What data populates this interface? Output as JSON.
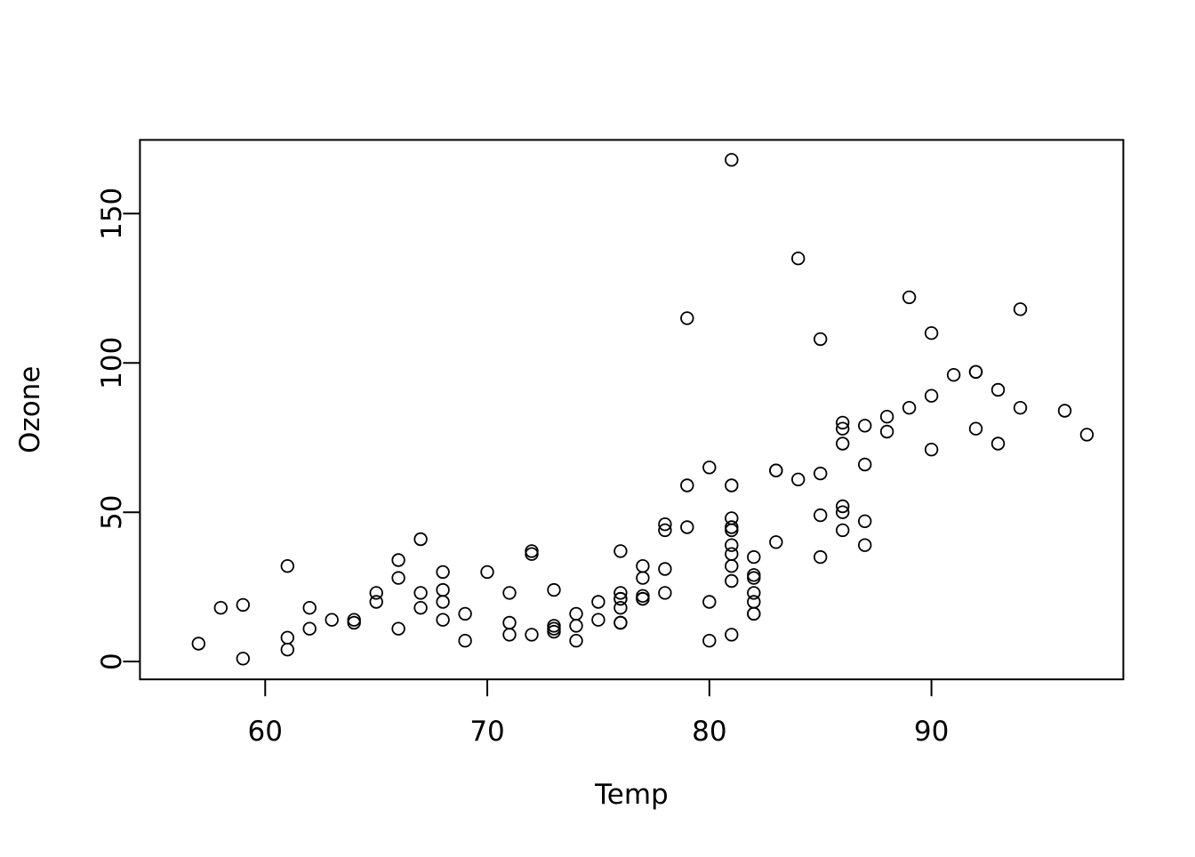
{
  "chart_data": {
    "type": "scatter",
    "title": "",
    "xlabel": "Temp",
    "ylabel": "Ozone",
    "x_ticks": [
      60,
      70,
      80,
      90
    ],
    "y_ticks": [
      0,
      50,
      100,
      150
    ],
    "xlim": [
      54.36,
      98.64
    ],
    "ylim": [
      -5.96,
      174.68
    ],
    "grid": false,
    "legend": "none",
    "marker": "open-circle",
    "marker_color": "#000000",
    "background": "#ffffff",
    "points": [
      [
        67,
        41
      ],
      [
        72,
        36
      ],
      [
        74,
        12
      ],
      [
        62,
        18
      ],
      [
        66,
        28
      ],
      [
        65,
        23
      ],
      [
        59,
        19
      ],
      [
        61,
        8
      ],
      [
        74,
        7
      ],
      [
        69,
        16
      ],
      [
        66,
        11
      ],
      [
        68,
        14
      ],
      [
        58,
        18
      ],
      [
        64,
        14
      ],
      [
        66,
        34
      ],
      [
        57,
        6
      ],
      [
        68,
        30
      ],
      [
        62,
        11
      ],
      [
        59,
        1
      ],
      [
        73,
        11
      ],
      [
        61,
        4
      ],
      [
        61,
        32
      ],
      [
        67,
        23
      ],
      [
        81,
        45
      ],
      [
        79,
        115
      ],
      [
        76,
        37
      ],
      [
        82,
        29
      ],
      [
        90,
        71
      ],
      [
        87,
        39
      ],
      [
        82,
        23
      ],
      [
        77,
        21
      ],
      [
        72,
        37
      ],
      [
        65,
        20
      ],
      [
        73,
        12
      ],
      [
        76,
        13
      ],
      [
        84,
        135
      ],
      [
        85,
        49
      ],
      [
        81,
        32
      ],
      [
        83,
        64
      ],
      [
        83,
        40
      ],
      [
        88,
        77
      ],
      [
        92,
        97
      ],
      [
        92,
        97
      ],
      [
        89,
        85
      ],
      [
        73,
        10
      ],
      [
        81,
        27
      ],
      [
        80,
        7
      ],
      [
        81,
        48
      ],
      [
        82,
        35
      ],
      [
        84,
        61
      ],
      [
        87,
        79
      ],
      [
        85,
        63
      ],
      [
        74,
        16
      ],
      [
        86,
        80
      ],
      [
        85,
        108
      ],
      [
        82,
        20
      ],
      [
        86,
        52
      ],
      [
        88,
        82
      ],
      [
        86,
        50
      ],
      [
        83,
        64
      ],
      [
        81,
        59
      ],
      [
        81,
        39
      ],
      [
        81,
        9
      ],
      [
        82,
        16
      ],
      [
        86,
        78
      ],
      [
        85,
        35
      ],
      [
        87,
        66
      ],
      [
        89,
        122
      ],
      [
        90,
        89
      ],
      [
        90,
        110
      ],
      [
        86,
        44
      ],
      [
        82,
        28
      ],
      [
        80,
        65
      ],
      [
        77,
        22
      ],
      [
        79,
        59
      ],
      [
        76,
        23
      ],
      [
        78,
        31
      ],
      [
        78,
        44
      ],
      [
        77,
        21
      ],
      [
        72,
        9
      ],
      [
        79,
        45
      ],
      [
        81,
        168
      ],
      [
        86,
        73
      ],
      [
        97,
        76
      ],
      [
        94,
        118
      ],
      [
        96,
        84
      ],
      [
        94,
        85
      ],
      [
        91,
        96
      ],
      [
        92,
        78
      ],
      [
        93,
        73
      ],
      [
        93,
        91
      ],
      [
        80,
        20
      ],
      [
        77,
        32
      ],
      [
        75,
        20
      ],
      [
        78,
        23
      ],
      [
        76,
        21
      ],
      [
        73,
        24
      ],
      [
        81,
        44
      ],
      [
        76,
        21
      ],
      [
        77,
        28
      ],
      [
        71,
        9
      ],
      [
        71,
        13
      ],
      [
        78,
        46
      ],
      [
        67,
        18
      ],
      [
        76,
        13
      ],
      [
        68,
        24
      ],
      [
        82,
        16
      ],
      [
        64,
        13
      ],
      [
        71,
        23
      ],
      [
        81,
        36
      ],
      [
        69,
        7
      ],
      [
        63,
        14
      ],
      [
        70,
        30
      ],
      [
        75,
        14
      ],
      [
        76,
        18
      ],
      [
        68,
        20
      ],
      [
        87,
        47
      ]
    ]
  },
  "layout_note": "R base graphics scatter plot, open circle markers, box around plot region"
}
